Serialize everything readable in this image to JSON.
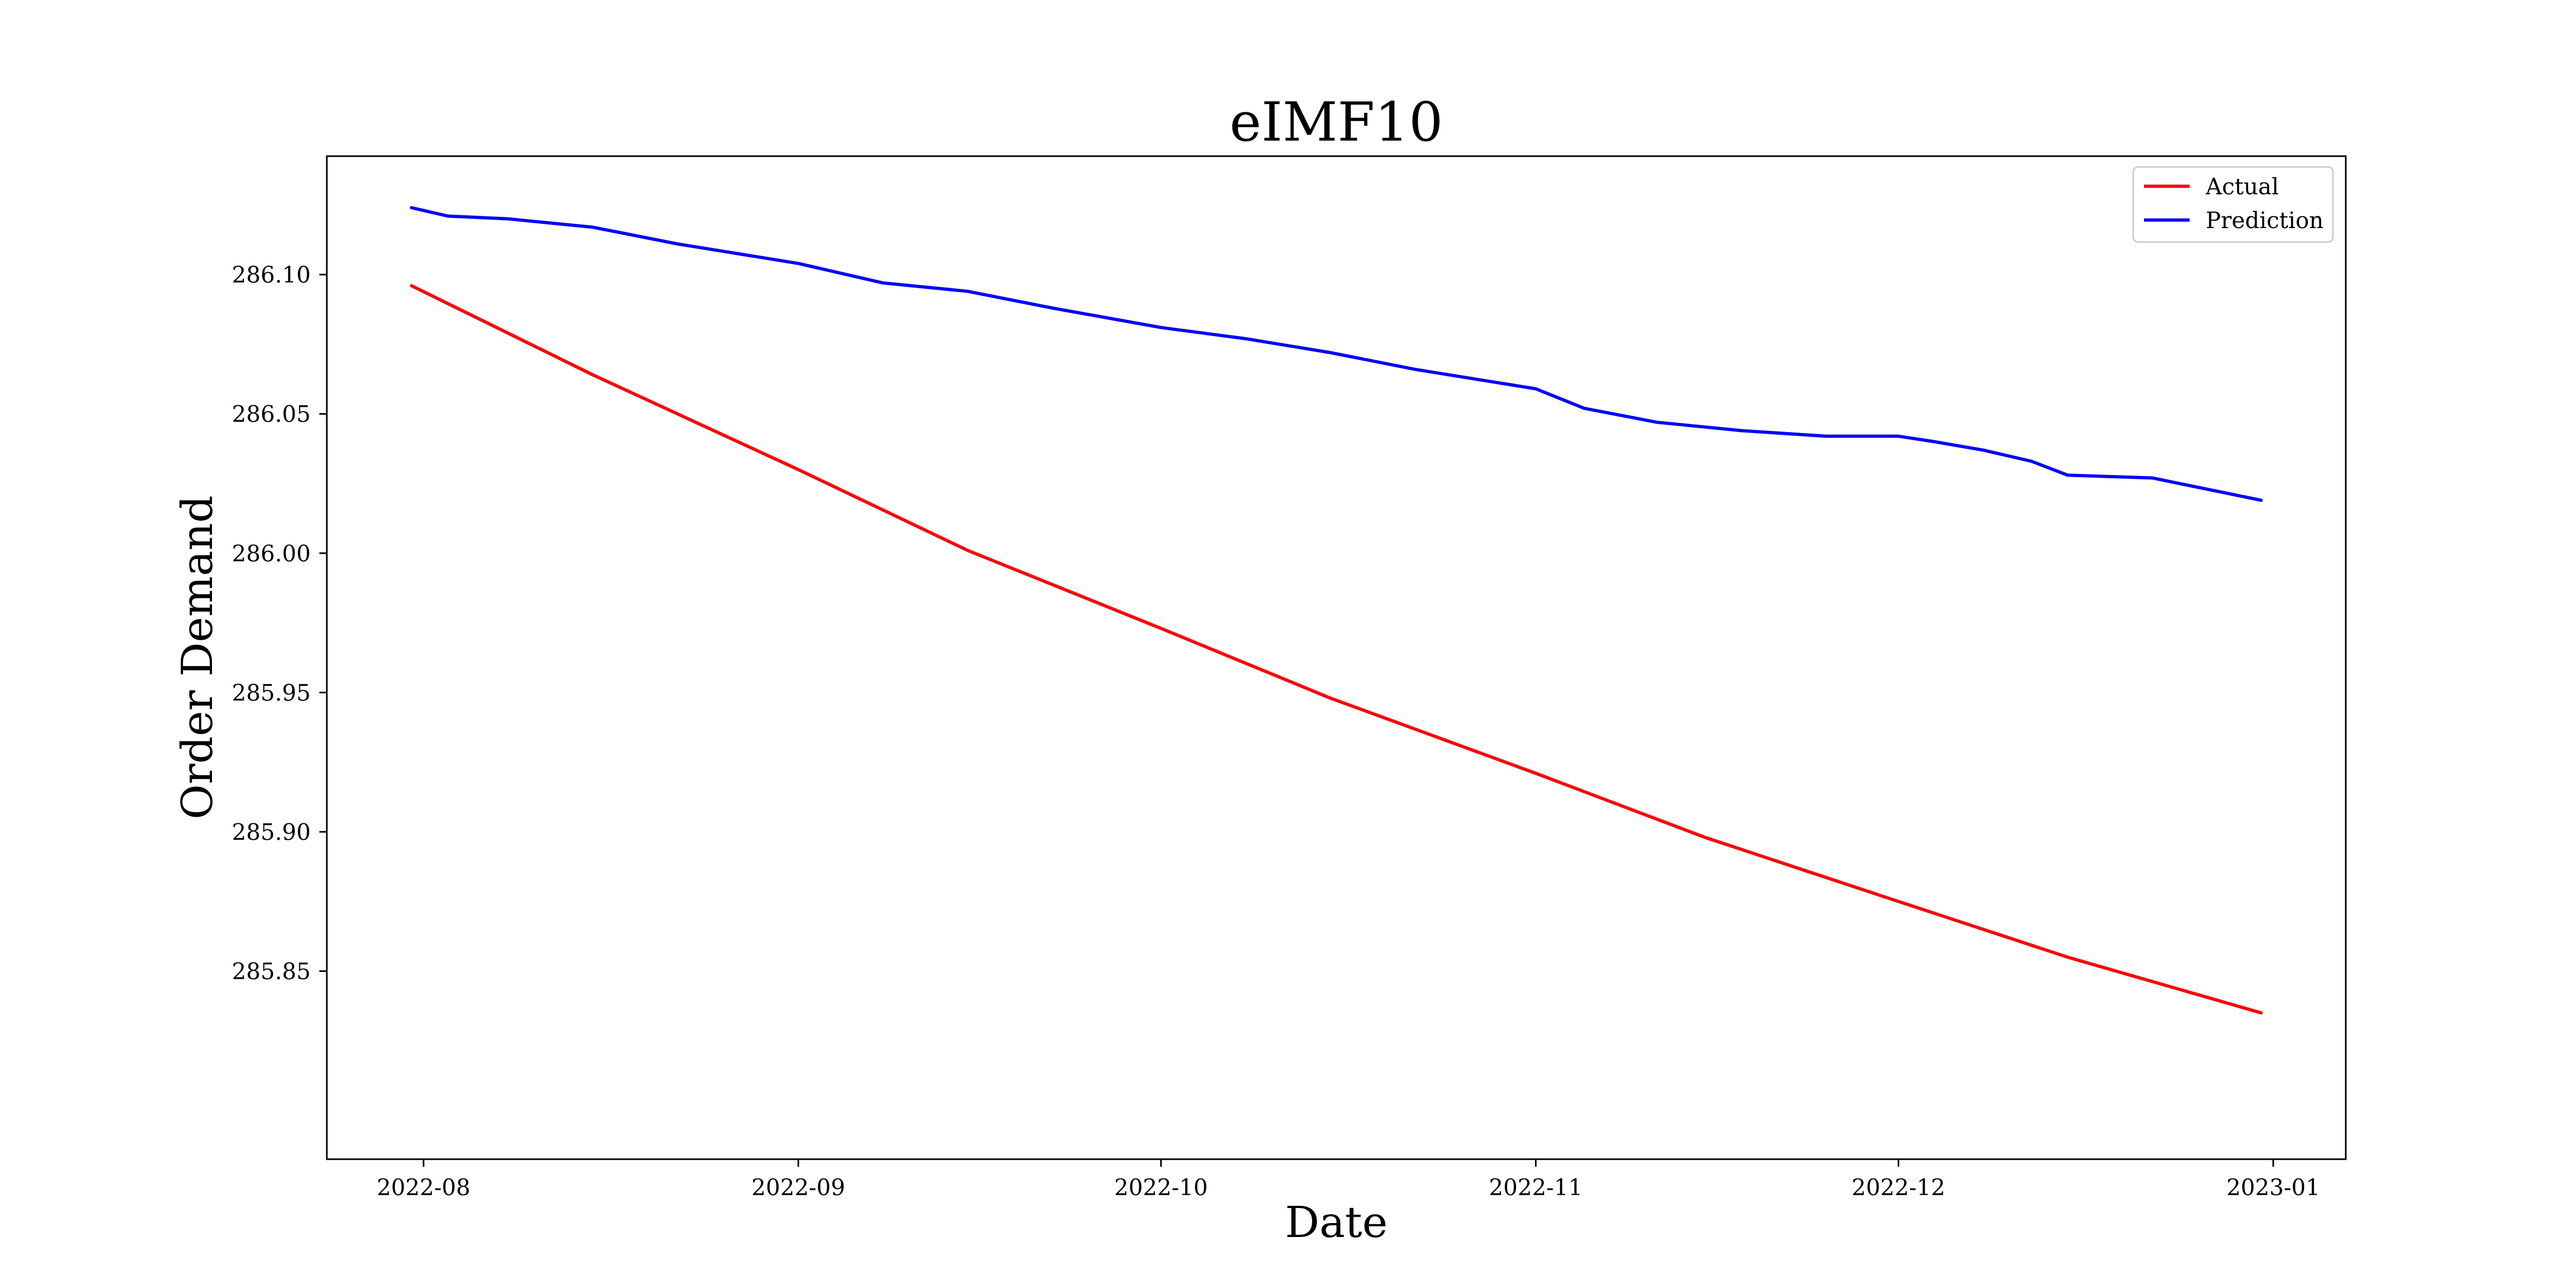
{
  "chart_data": {
    "type": "line",
    "title": "eIMF10",
    "xlabel": "Date",
    "ylabel": "Order Demand",
    "x_axis_type": "date",
    "xlim": [
      "2022-07-24",
      "2023-01-07"
    ],
    "ylim": [
      285.7825,
      286.1425
    ],
    "x_ticks": [
      "2022-08",
      "2022-09",
      "2022-10",
      "2022-11",
      "2022-12",
      "2023-01"
    ],
    "y_ticks": [
      285.85,
      285.9,
      285.95,
      286.0,
      286.05,
      286.1
    ],
    "y_tick_labels": [
      "285.85",
      "285.90",
      "285.95",
      "286.00",
      "286.05",
      "286.10"
    ],
    "grid": false,
    "legend_position": "top-right",
    "series": [
      {
        "name": "Actual",
        "color": "#ff0000",
        "x": [
          "2022-07-31",
          "2022-08-15",
          "2022-09-01",
          "2022-09-15",
          "2022-10-01",
          "2022-10-15",
          "2022-11-01",
          "2022-11-15",
          "2022-12-01",
          "2022-12-15",
          "2022-12-31"
        ],
        "y": [
          286.096,
          286.064,
          286.03,
          286.001,
          285.973,
          285.948,
          285.921,
          285.898,
          285.875,
          285.855,
          285.835
        ]
      },
      {
        "name": "Prediction",
        "color": "#0000ff",
        "x": [
          "2022-07-31",
          "2022-08-03",
          "2022-08-08",
          "2022-08-15",
          "2022-08-22",
          "2022-09-01",
          "2022-09-08",
          "2022-09-15",
          "2022-09-22",
          "2022-10-01",
          "2022-10-08",
          "2022-10-15",
          "2022-10-22",
          "2022-11-01",
          "2022-11-05",
          "2022-11-11",
          "2022-11-18",
          "2022-11-25",
          "2022-12-01",
          "2022-12-04",
          "2022-12-08",
          "2022-12-12",
          "2022-12-15",
          "2022-12-22",
          "2022-12-31"
        ],
        "y": [
          286.124,
          286.121,
          286.12,
          286.117,
          286.111,
          286.104,
          286.097,
          286.094,
          286.088,
          286.081,
          286.077,
          286.072,
          286.066,
          286.059,
          286.052,
          286.047,
          286.044,
          286.042,
          286.042,
          286.04,
          286.037,
          286.033,
          286.028,
          286.027,
          286.019
        ]
      }
    ]
  }
}
